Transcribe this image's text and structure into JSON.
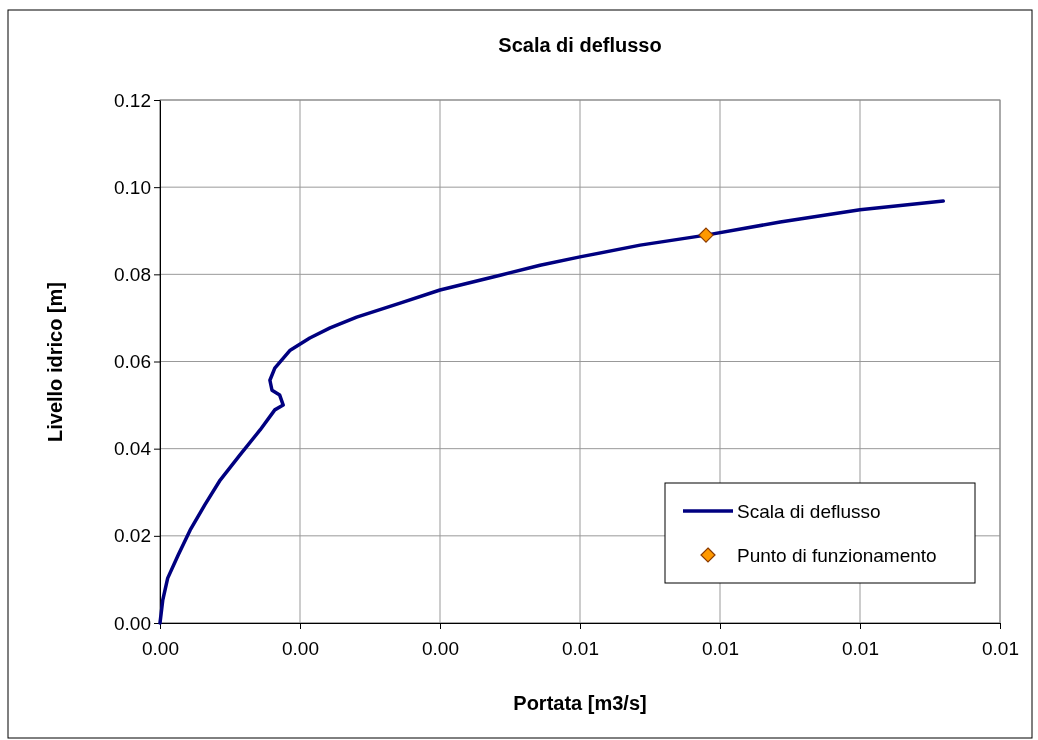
{
  "chart_data": {
    "type": "line",
    "title": "Scala di deflusso",
    "xlabel": "Portata [m3/s]",
    "ylabel": "Livello idrico [m]",
    "xlim": [
      0,
      0.012
    ],
    "ylim": [
      0,
      0.12
    ],
    "xticks": [
      {
        "value": 0,
        "label": "0.00"
      },
      {
        "value": 0.002,
        "label": "0.00"
      },
      {
        "value": 0.004,
        "label": "0.00"
      },
      {
        "value": 0.006,
        "label": "0.01"
      },
      {
        "value": 0.008,
        "label": "0.01"
      },
      {
        "value": 0.01,
        "label": "0.01"
      },
      {
        "value": 0.012,
        "label": "0.01"
      }
    ],
    "yticks": [
      {
        "value": 0,
        "label": "0.00"
      },
      {
        "value": 0.02,
        "label": "0.02"
      },
      {
        "value": 0.04,
        "label": "0.04"
      },
      {
        "value": 0.06,
        "label": "0.06"
      },
      {
        "value": 0.08,
        "label": "0.08"
      },
      {
        "value": 0.1,
        "label": "0.10"
      },
      {
        "value": 0.12,
        "label": "0.12"
      }
    ],
    "grid": true,
    "legend": "bottom right",
    "series": [
      {
        "name": "Scala di deflusso",
        "color": "#000080",
        "marker": "none",
        "line_style": "solid",
        "x": [
          0,
          4e-05,
          0.00011,
          0.00026,
          0.00043,
          0.00064,
          0.00086,
          0.00114,
          0.00143,
          0.00164,
          0.00176,
          0.00171,
          0.0016,
          0.00157,
          0.00164,
          0.00186,
          0.00214,
          0.00243,
          0.00281,
          0.00343,
          0.004,
          0.00486,
          0.00543,
          0.006,
          0.00686,
          0.0078,
          0.00886,
          0.01,
          0.01119
        ],
        "values": [
          0,
          0.0053,
          0.0103,
          0.0156,
          0.0213,
          0.0271,
          0.0328,
          0.0385,
          0.0443,
          0.0489,
          0.05,
          0.0523,
          0.0534,
          0.0557,
          0.0585,
          0.0626,
          0.0654,
          0.0677,
          0.0702,
          0.0734,
          0.0764,
          0.0798,
          0.0821,
          0.084,
          0.0867,
          0.089,
          0.092,
          0.0948,
          0.0968
        ]
      },
      {
        "name": "Punto di funzionamento",
        "type": "scatter",
        "color": "#ff9900",
        "marker": "diamond",
        "x": [
          0.0078
        ],
        "values": [
          0.089
        ]
      }
    ]
  }
}
